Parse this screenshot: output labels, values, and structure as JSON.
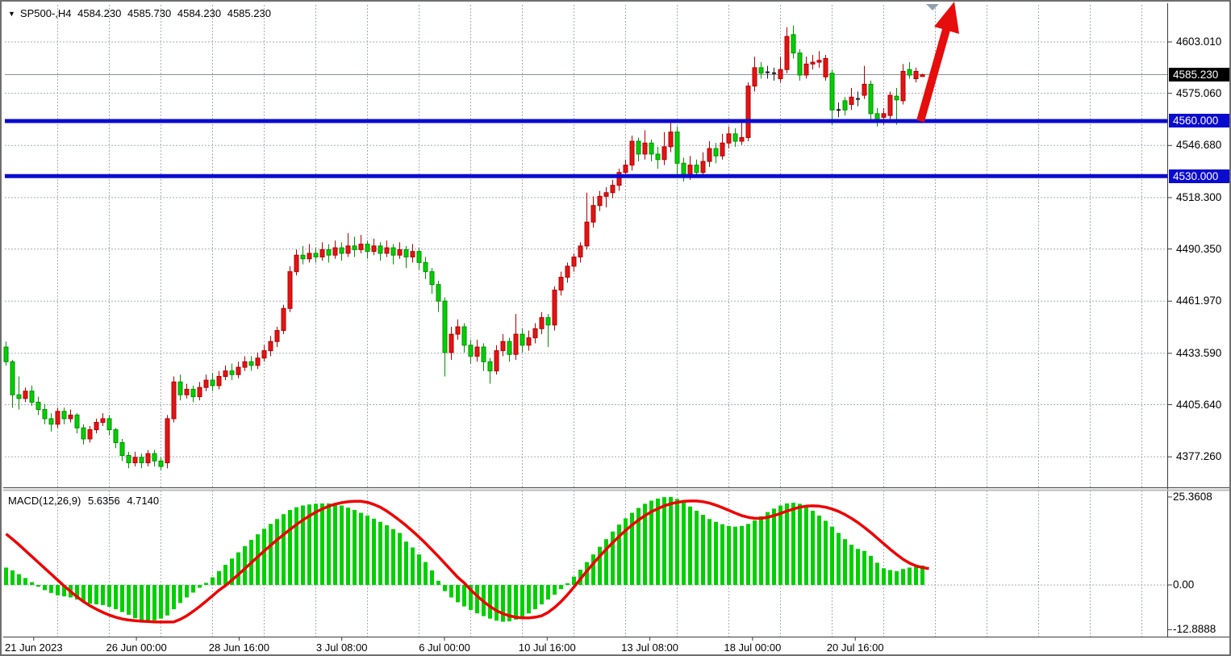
{
  "header": {
    "symbol_triangle": "▼",
    "symbol": "SP500-,H4",
    "open": "4584.230",
    "high": "4585.730",
    "low": "4584.230",
    "close": "4585.230"
  },
  "price_axis": {
    "ticks": [
      "4603.010",
      "4575.060",
      "4546.680",
      "4518.300",
      "4490.350",
      "4461.970",
      "4433.590",
      "4405.640",
      "4377.260"
    ],
    "tick_values": [
      4603.01,
      4575.06,
      4546.68,
      4518.3,
      4490.35,
      4461.97,
      4433.59,
      4405.64,
      4377.26
    ],
    "current_price_tag": {
      "label": "4585.230",
      "value": 4585.23,
      "bg": "#000000",
      "fg": "#ffffff"
    },
    "level_tags": [
      {
        "label": "4560.000",
        "value": 4560.0,
        "bg": "#0b0bd0",
        "fg": "#ffffff"
      },
      {
        "label": "4530.000",
        "value": 4530.0,
        "bg": "#0b0bd0",
        "fg": "#ffffff"
      }
    ]
  },
  "time_axis": {
    "labels": [
      "21 Jun 2023",
      "26 Jun 00:00",
      "28 Jun 16:00",
      "3 Jul 08:00",
      "6 Jul 00:00",
      "10 Jul 16:00",
      "13 Jul 08:00",
      "18 Jul 00:00",
      "20 Jul 16:00"
    ]
  },
  "macd_panel": {
    "name": "MACD(12,26,9)",
    "main_value": "5.6356",
    "signal_value": "4.7140",
    "axis_ticks": [
      "25.3608",
      "0.00",
      "-12.8888"
    ],
    "axis_tick_values": [
      25.3608,
      0.0,
      -12.8888
    ]
  },
  "colors": {
    "up_candle": "#e41414",
    "up_border": "#b00000",
    "down_candle": "#00d000",
    "down_border": "#009000",
    "doji": "#1b1b1b",
    "grid": "#a3adb8",
    "bid_line": "#8c9299",
    "level_line": "#0b0bd0",
    "hist": "#00cf00",
    "signal": "#ee0000",
    "arrow": "#e60d0d",
    "end_marker": "#8fa2b0",
    "frame": "#3c3c3c"
  },
  "chart_data": {
    "type": "candlestick",
    "symbol": "SP500-",
    "timeframe": "H4",
    "current_ohlc": {
      "open": 4584.23,
      "high": 4585.73,
      "low": 4584.23,
      "close": 4585.23
    },
    "horizontal_levels": [
      4560.0,
      4530.0
    ],
    "bid_line_value": 4585.23,
    "main_ylim": [
      4360.2,
      4623.2
    ],
    "macd_ylim": [
      -14.9,
      27.2
    ],
    "x_label_positions": [
      39.8,
      167.1,
      294.4,
      421.7,
      549.0,
      676.3,
      803.6,
      930.9,
      1058.2
    ],
    "candles": [
      [
        4437,
        4440,
        4427,
        4429
      ],
      [
        4429,
        4430,
        4404,
        4411
      ],
      [
        4411,
        4421,
        4403,
        4409
      ],
      [
        4409,
        4415,
        4407,
        4413
      ],
      [
        4413,
        4416,
        4405,
        4407
      ],
      [
        4407,
        4410,
        4400,
        4403
      ],
      [
        4403,
        4406,
        4395,
        4398
      ],
      [
        4398,
        4401,
        4391,
        4395
      ],
      [
        4395,
        4404,
        4393,
        4402
      ],
      [
        4402,
        4404,
        4395,
        4398
      ],
      [
        4398,
        4403,
        4396,
        4400
      ],
      [
        4400,
        4401,
        4390,
        4393
      ],
      [
        4393,
        4395,
        4384,
        4387
      ],
      [
        4387,
        4394,
        4385,
        4392
      ],
      [
        4392,
        4398,
        4390,
        4396
      ],
      [
        4396,
        4401,
        4394,
        4398
      ],
      [
        4398,
        4400,
        4389,
        4392
      ],
      [
        4392,
        4393,
        4382,
        4385
      ],
      [
        4385,
        4387,
        4375,
        4378
      ],
      [
        4378,
        4380,
        4371,
        4374
      ],
      [
        4374,
        4380,
        4372,
        4377
      ],
      [
        4377,
        4379,
        4371,
        4374
      ],
      [
        4374,
        4381,
        4372,
        4379
      ],
      [
        4379,
        4381,
        4372,
        4375
      ],
      [
        4375,
        4377,
        4370,
        4372
      ],
      [
        4374,
        4400,
        4371,
        4398
      ],
      [
        4398,
        4421,
        4396,
        4418
      ],
      [
        4418,
        4422,
        4408,
        4411
      ],
      [
        4411,
        4417,
        4409,
        4414
      ],
      [
        4414,
        4416,
        4407,
        4410
      ],
      [
        4410,
        4418,
        4408,
        4415
      ],
      [
        4415,
        4422,
        4413,
        4419
      ],
      [
        4419,
        4423,
        4413,
        4416
      ],
      [
        4416,
        4424,
        4414,
        4421
      ],
      [
        4421,
        4427,
        4419,
        4424
      ],
      [
        4424,
        4428,
        4419,
        4422
      ],
      [
        4422,
        4429,
        4420,
        4426
      ],
      [
        4426,
        4432,
        4424,
        4429
      ],
      [
        4429,
        4432,
        4424,
        4427
      ],
      [
        4427,
        4434,
        4425,
        4431
      ],
      [
        4431,
        4438,
        4429,
        4435
      ],
      [
        4435,
        4443,
        4432,
        4440
      ],
      [
        4440,
        4448,
        4437,
        4446
      ],
      [
        4446,
        4460,
        4444,
        4458
      ],
      [
        4458,
        4481,
        4456,
        4478
      ],
      [
        4478,
        4490,
        4476,
        4487
      ],
      [
        4487,
        4492,
        4482,
        4485
      ],
      [
        4485,
        4493,
        4483,
        4488
      ],
      [
        4488,
        4491,
        4483,
        4486
      ],
      [
        4486,
        4494,
        4484,
        4490
      ],
      [
        4490,
        4493,
        4483,
        4487
      ],
      [
        4487,
        4495,
        4485,
        4491
      ],
      [
        4491,
        4494,
        4484,
        4488
      ],
      [
        4488,
        4499,
        4486,
        4492
      ],
      [
        4492,
        4497,
        4486,
        4490
      ],
      [
        4490,
        4498,
        4488,
        4493
      ],
      [
        4493,
        4495,
        4485,
        4489
      ],
      [
        4489,
        4496,
        4487,
        4492
      ],
      [
        4492,
        4494,
        4484,
        4488
      ],
      [
        4488,
        4495,
        4486,
        4491
      ],
      [
        4491,
        4493,
        4482,
        4487
      ],
      [
        4487,
        4494,
        4485,
        4490
      ],
      [
        4490,
        4492,
        4480,
        4486
      ],
      [
        4486,
        4493,
        4483,
        4489
      ],
      [
        4489,
        4491,
        4479,
        4483
      ],
      [
        4483,
        4486,
        4474,
        4478
      ],
      [
        4478,
        4480,
        4466,
        4471
      ],
      [
        4471,
        4473,
        4456,
        4462
      ],
      [
        4462,
        4464,
        4421,
        4434
      ],
      [
        4434,
        4448,
        4430,
        4444
      ],
      [
        4444,
        4452,
        4441,
        4448
      ],
      [
        4448,
        4450,
        4434,
        4438
      ],
      [
        4438,
        4441,
        4428,
        4432
      ],
      [
        4432,
        4441,
        4429,
        4437
      ],
      [
        4437,
        4439,
        4424,
        4429
      ],
      [
        4429,
        4431,
        4417,
        4424
      ],
      [
        4424,
        4438,
        4422,
        4435
      ],
      [
        4435,
        4444,
        4432,
        4440
      ],
      [
        4440,
        4442,
        4429,
        4433
      ],
      [
        4433,
        4455,
        4430,
        4444
      ],
      [
        4444,
        4447,
        4434,
        4438
      ],
      [
        4438,
        4446,
        4435,
        4442
      ],
      [
        4442,
        4450,
        4439,
        4447
      ],
      [
        4447,
        4456,
        4444,
        4453
      ],
      [
        4453,
        4455,
        4437,
        4449
      ],
      [
        4449,
        4470,
        4446,
        4468
      ],
      [
        4468,
        4478,
        4465,
        4475
      ],
      [
        4475,
        4483,
        4472,
        4481
      ],
      [
        4481,
        4488,
        4478,
        4486
      ],
      [
        4486,
        4494,
        4483,
        4492
      ],
      [
        4492,
        4521,
        4490,
        4505
      ],
      [
        4505,
        4519,
        4502,
        4514
      ],
      [
        4514,
        4522,
        4511,
        4519
      ],
      [
        4519,
        4524,
        4513,
        4521
      ],
      [
        4521,
        4528,
        4518,
        4525
      ],
      [
        4525,
        4534,
        4522,
        4532
      ],
      [
        4532,
        4539,
        4529,
        4536
      ],
      [
        4536,
        4552,
        4533,
        4549
      ],
      [
        4549,
        4551,
        4538,
        4542
      ],
      [
        4542,
        4555,
        4539,
        4548
      ],
      [
        4548,
        4550,
        4538,
        4542
      ],
      [
        4542,
        4546,
        4534,
        4539
      ],
      [
        4539,
        4554,
        4536,
        4546
      ],
      [
        4546,
        4559,
        4543,
        4554
      ],
      [
        4554,
        4557,
        4531,
        4537
      ],
      [
        4537,
        4540,
        4527,
        4531
      ],
      [
        4531,
        4541,
        4528,
        4536
      ],
      [
        4536,
        4539,
        4529,
        4532
      ],
      [
        4532,
        4543,
        4530,
        4538
      ],
      [
        4538,
        4549,
        4535,
        4545
      ],
      [
        4545,
        4548,
        4537,
        4541
      ],
      [
        4541,
        4553,
        4539,
        4548
      ],
      [
        4548,
        4557,
        4545,
        4553
      ],
      [
        4553,
        4556,
        4546,
        4549
      ],
      [
        4549,
        4561,
        4547,
        4551
      ],
      [
        4551,
        4581,
        4549,
        4579
      ],
      [
        4579,
        4595,
        4576,
        4589
      ],
      [
        4589,
        4592,
        4583,
        4586
      ],
      [
        4586,
        4590,
        4583,
        4586.5
      ],
      [
        4586.5,
        4589,
        4582,
        4586
      ],
      [
        4583,
        4595,
        4581,
        4588
      ],
      [
        4588,
        4611,
        4586,
        4606
      ],
      [
        4607,
        4612,
        4594,
        4597
      ],
      [
        4597,
        4599,
        4582,
        4585
      ],
      [
        4585,
        4595,
        4583,
        4591
      ],
      [
        4591,
        4596,
        4588,
        4592
      ],
      [
        4592,
        4598,
        4589,
        4593
      ],
      [
        4584,
        4596,
        4582,
        4594
      ],
      [
        4586,
        4588,
        4558,
        4566
      ],
      [
        4566,
        4570,
        4562,
        4566
      ],
      [
        4571,
        4573,
        4563,
        4566
      ],
      [
        4569,
        4578,
        4566,
        4573
      ],
      [
        4572,
        4576,
        4568,
        4572
      ],
      [
        4574,
        4590,
        4572,
        4580
      ],
      [
        4580,
        4582,
        4560,
        4564
      ],
      [
        4564,
        4567,
        4557,
        4561
      ],
      [
        4562,
        4567,
        4558,
        4564
      ],
      [
        4563,
        4576,
        4560,
        4574
      ],
      [
        4573.5,
        4578,
        4558,
        4571.5
      ],
      [
        4571,
        4591,
        4569,
        4587
      ],
      [
        4588,
        4592,
        4583,
        4585
      ],
      [
        4583,
        4589,
        4581,
        4587
      ],
      [
        4584.2,
        4585.7,
        4584.2,
        4585.2
      ]
    ],
    "macd": {
      "params": [
        12,
        26,
        9
      ],
      "histogram": [
        5,
        4.2,
        3.1,
        2,
        0.8,
        -0.5,
        -1.5,
        -2.3,
        -3,
        -3.3,
        -3.6,
        -4.2,
        -5,
        -5.4,
        -5.6,
        -5.8,
        -6.3,
        -7,
        -7.8,
        -8.6,
        -9.6,
        -10.3,
        -10.5,
        -10.2,
        -9.7,
        -8.8,
        -7,
        -5.2,
        -3.6,
        -2.2,
        -0.8,
        0.6,
        2.2,
        4,
        5.8,
        7.6,
        9.4,
        11.2,
        13,
        14.6,
        16.2,
        17.6,
        19,
        20.4,
        21.6,
        22.4,
        22.9,
        23.2,
        23.4,
        23.5,
        23.5,
        23.3,
        22.9,
        22.3,
        21.6,
        20.8,
        20,
        19.1,
        18.2,
        17.2,
        16.1,
        15,
        12.5,
        10.8,
        8.8,
        6.6,
        4.2,
        1.2,
        -1.8,
        -3.6,
        -5,
        -6.2,
        -7.2,
        -8.2,
        -9,
        -9.7,
        -10.3,
        -10.6,
        -10.5,
        -10,
        -9.2,
        -8.2,
        -7,
        -5.6,
        -4.2,
        -2.8,
        -1.2,
        0.5,
        2.4,
        4.4,
        6.6,
        8.8,
        11,
        13.2,
        15.4,
        17.4,
        19.2,
        20.8,
        22.2,
        23.4,
        24.3,
        24.9,
        25.3,
        25.36,
        24.8,
        23.8,
        22.6,
        21.4,
        20.2,
        19,
        18.2,
        17.5,
        17,
        16.8,
        17,
        17.6,
        18.6,
        19.8,
        21,
        22,
        22.9,
        23.5,
        23.7,
        23.4,
        22.6,
        21.4,
        20,
        18.5,
        16.8,
        15,
        13.2,
        11.6,
        10.4,
        9.8,
        8.4,
        6.4,
        4.8,
        4.3,
        4,
        4.6,
        5,
        5.2,
        5.6
      ],
      "signal": [
        14.7,
        13.2,
        11.6,
        9.9,
        8.2,
        6.5,
        4.8,
        3.1,
        1.4,
        -0.3,
        -1.9,
        -3.4,
        -4.8,
        -6,
        -7,
        -7.9,
        -8.7,
        -9.3,
        -9.8,
        -10.1,
        -10.3,
        -10.45,
        -10.55,
        -10.65,
        -10.7,
        -10.7,
        -10.65,
        -9.9,
        -8.9,
        -7.6,
        -6.2,
        -4.7,
        -3.1,
        -1.5,
        -0.2,
        1.4,
        3,
        4.7,
        6.4,
        8.1,
        9.8,
        11.4,
        13,
        14.5,
        16,
        17.4,
        18.7,
        19.9,
        21,
        21.9,
        22.7,
        23.3,
        23.7,
        24,
        24.1,
        24.1,
        23.8,
        23.2,
        22.4,
        21.3,
        20,
        18.6,
        17.1,
        15.5,
        13.8,
        12,
        10.1,
        8.2,
        6.2,
        4.2,
        2.2,
        0.6,
        -1.4,
        -3.2,
        -4.8,
        -6.2,
        -7.4,
        -8.3,
        -8.9,
        -9.3,
        -9.5,
        -9.5,
        -9.3,
        -8.9,
        -7.9,
        -6.5,
        -4.8,
        -2.8,
        -0.6,
        1.7,
        4,
        6.2,
        8.3,
        10.3,
        12.2,
        14,
        15.7,
        17.3,
        18.7,
        20,
        21.1,
        22,
        22.8,
        23.4,
        23.8,
        24.1,
        24.2,
        24.2,
        24,
        23.6,
        23,
        22.3,
        21.5,
        20.7,
        20,
        19.5,
        19.2,
        19.2,
        19.5,
        20,
        20.6,
        21.3,
        21.9,
        22.4,
        22.7,
        22.8,
        22.7,
        22.4,
        21.9,
        21.2,
        20.3,
        19.2,
        18,
        16.6,
        15.1,
        13.5,
        11.9,
        10.3,
        8.8,
        7.4,
        6.3,
        5.5,
        5,
        4.7
      ]
    }
  }
}
